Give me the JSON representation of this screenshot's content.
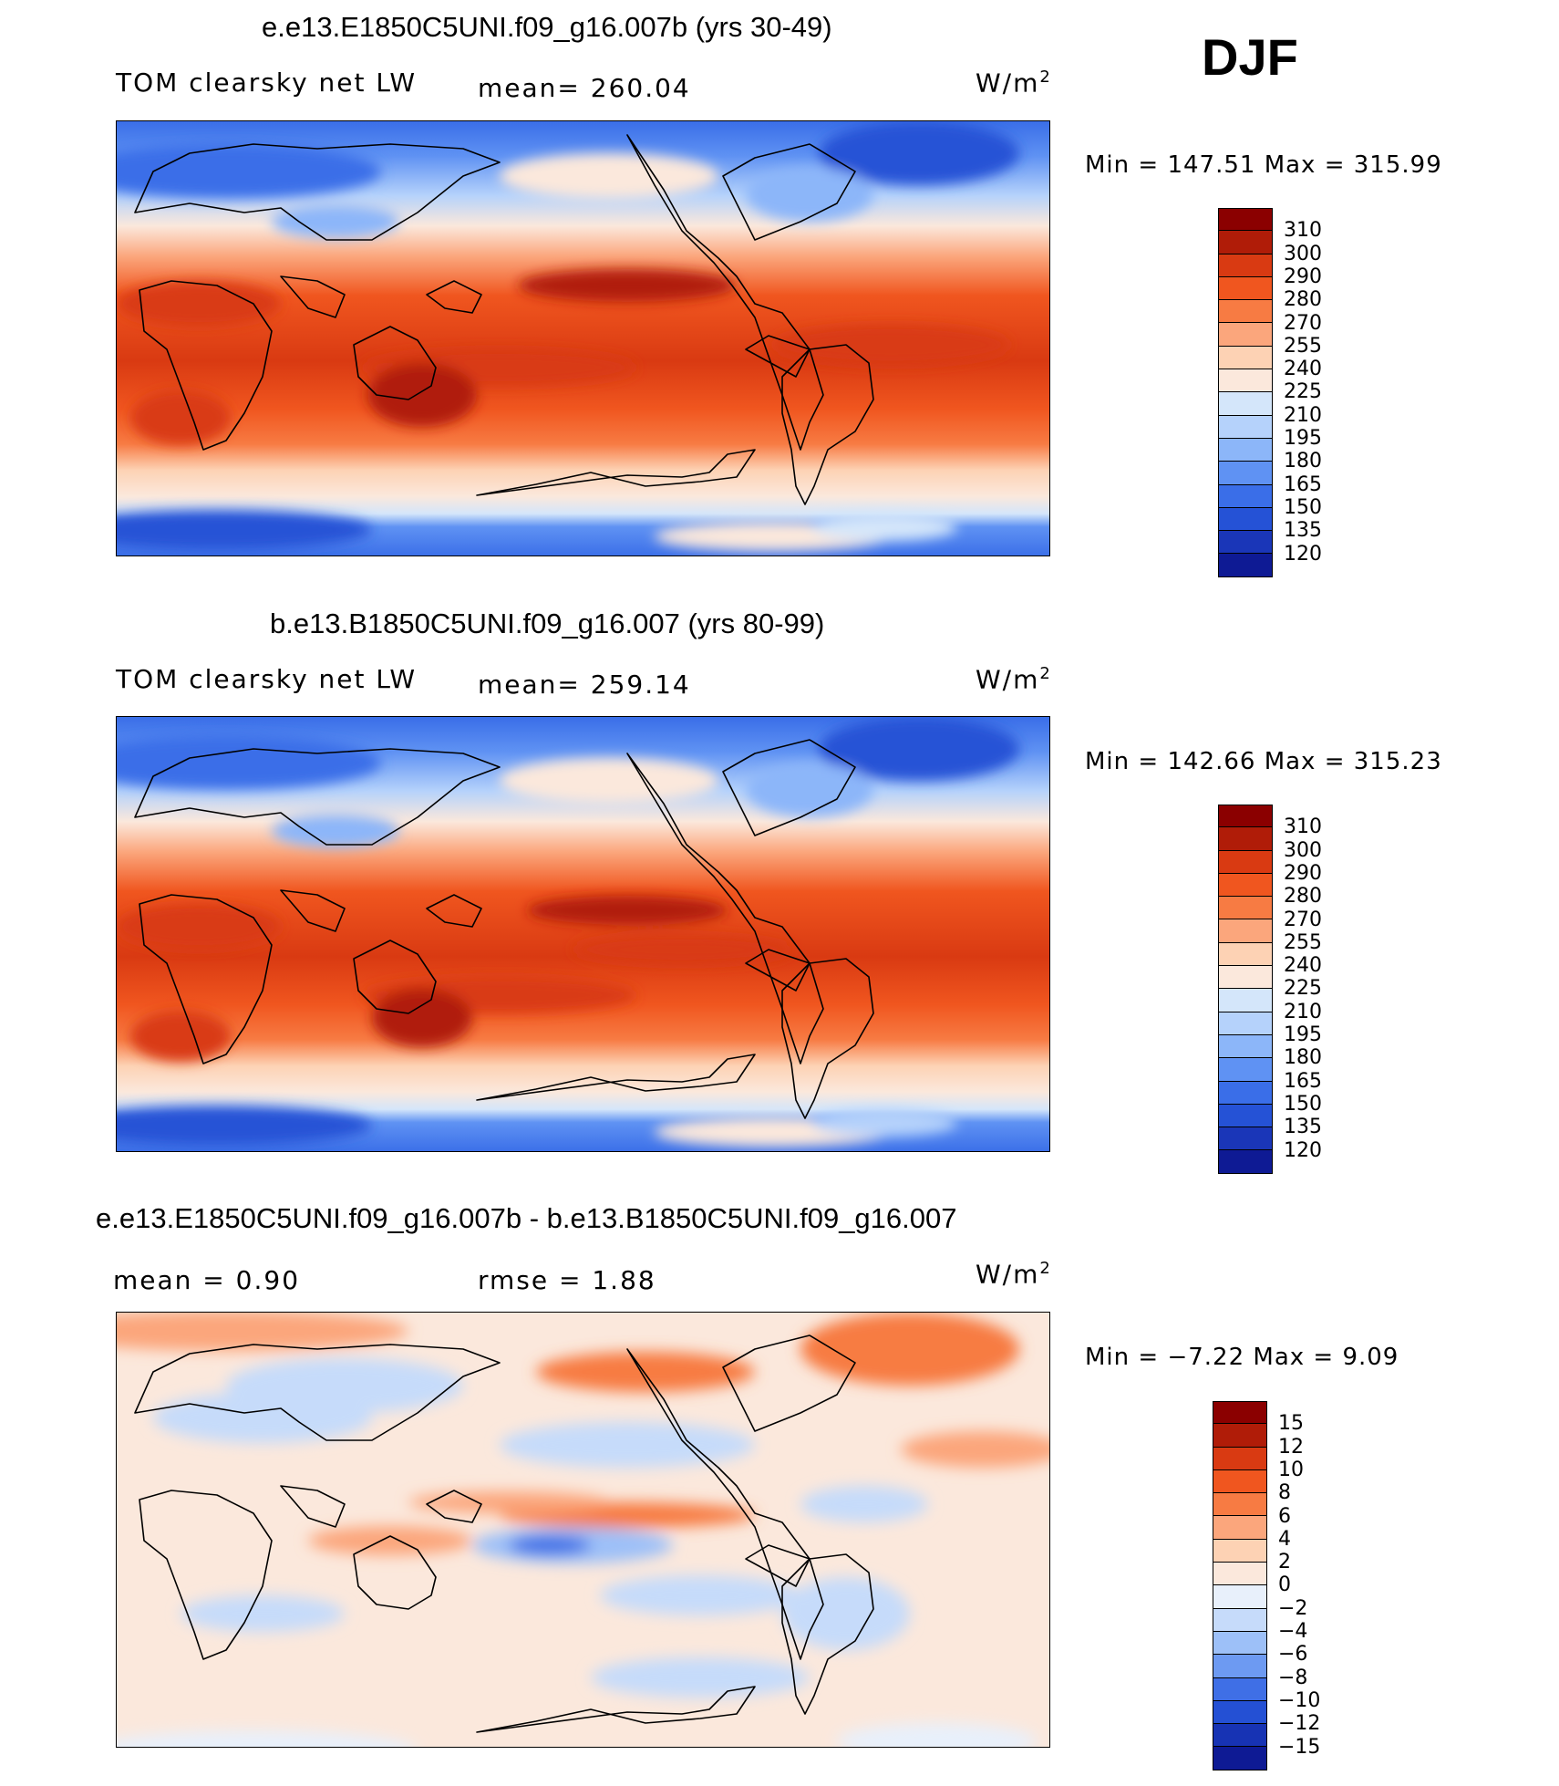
{
  "season": "DJF",
  "panels": [
    {
      "title": "e.e13.E1850C5UNI.f09_g16.007b (yrs 30-49)",
      "variable": "TOM clearsky net LW",
      "stat_left": "",
      "stat_mid": "mean=  260.04",
      "units_base": "W/m",
      "units_sup": "2",
      "minmax": "Min  =  147.51  Max  =  315.99",
      "legend_labels": [
        "310",
        "300",
        "290",
        "280",
        "270",
        "255",
        "240",
        "225",
        "210",
        "195",
        "180",
        "165",
        "150",
        "135",
        "120"
      ],
      "legend_colors": [
        "#8b0000",
        "#b01c08",
        "#d93a12",
        "#f0561f",
        "#f77b43",
        "#fba67c",
        "#fdd2b4",
        "#fbe8dc",
        "#d4e6fa",
        "#b5d2fb",
        "#8cb6f9",
        "#5f92f3",
        "#3a6ee8",
        "#2552d6",
        "#1a36b8",
        "#0e1a94"
      ]
    },
    {
      "title": "b.e13.B1850C5UNI.f09_g16.007 (yrs 80-99)",
      "variable": "TOM clearsky net LW",
      "stat_left": "",
      "stat_mid": "mean=  259.14",
      "units_base": "W/m",
      "units_sup": "2",
      "minmax": "Min  =  142.66  Max  =  315.23",
      "legend_labels": [
        "310",
        "300",
        "290",
        "280",
        "270",
        "255",
        "240",
        "225",
        "210",
        "195",
        "180",
        "165",
        "150",
        "135",
        "120"
      ],
      "legend_colors": [
        "#8b0000",
        "#b01c08",
        "#d93a12",
        "#f0561f",
        "#f77b43",
        "#fba67c",
        "#fdd2b4",
        "#fbe8dc",
        "#d4e6fa",
        "#b5d2fb",
        "#8cb6f9",
        "#5f92f3",
        "#3a6ee8",
        "#2552d6",
        "#1a36b8",
        "#0e1a94"
      ]
    },
    {
      "title": "e.e13.E1850C5UNI.f09_g16.007b - b.e13.B1850C5UNI.f09_g16.007",
      "variable": "",
      "stat_left": "mean  =     0.90",
      "stat_mid": "rmse  =     1.88",
      "units_base": "W/m",
      "units_sup": "2",
      "minmax": "Min  =    −7.22  Max  =      9.09",
      "legend_labels": [
        "15",
        "12",
        "10",
        "8",
        "6",
        "4",
        "2",
        "0",
        "−2",
        "−4",
        "−6",
        "−8",
        "−10",
        "−12",
        "−15"
      ],
      "legend_colors": [
        "#8b0000",
        "#b01c08",
        "#d93a12",
        "#f0561f",
        "#f77b43",
        "#fba67c",
        "#fdd2b4",
        "#fbe8dc",
        "#e8f0fb",
        "#c6dbfa",
        "#9dc0f8",
        "#6d9af2",
        "#3f6fe6",
        "#2450d4",
        "#1733b4",
        "#0e1a94"
      ]
    }
  ]
}
